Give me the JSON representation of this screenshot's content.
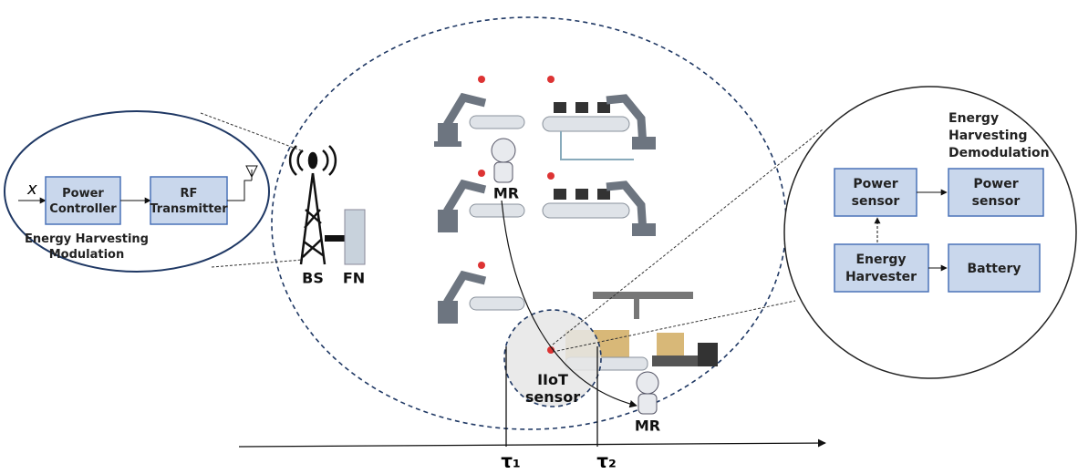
{
  "modulator": {
    "input": "x",
    "blocks": [
      {
        "lines": [
          "Power",
          "Controller"
        ]
      },
      {
        "lines": [
          "RF",
          "Transmitter"
        ]
      }
    ],
    "caption": [
      "Energy Harvesting",
      "Modulation"
    ]
  },
  "base_station": {
    "bs": "BS",
    "fn": "FN"
  },
  "robots": [
    "MR",
    "MR"
  ],
  "sensor": {
    "lines": [
      "IIoT",
      "sensor"
    ]
  },
  "demodulator": {
    "title": [
      "Energy",
      "Harvesting",
      "Demodulation"
    ],
    "blocks": [
      {
        "lines": [
          "Power",
          "sensor"
        ]
      },
      {
        "lines": [
          "Power",
          "sensor"
        ]
      },
      {
        "lines": [
          "Energy",
          "Harvester"
        ]
      },
      {
        "lines": [
          "Battery"
        ]
      }
    ]
  },
  "timeline": {
    "ticks": [
      "τ₁",
      "τ₂"
    ]
  }
}
